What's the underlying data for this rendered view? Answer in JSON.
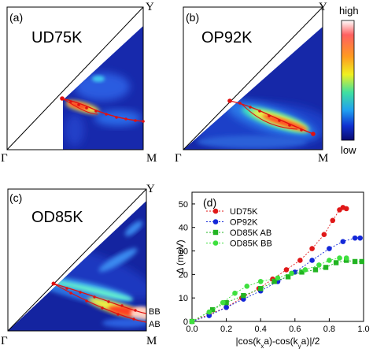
{
  "panels": [
    {
      "tag": "(a)",
      "sample": "UD75K",
      "corner_top": "Y",
      "corner_left": "Γ",
      "corner_right": "M"
    },
    {
      "tag": "(b)",
      "sample": "OP92K",
      "corner_top": "Y",
      "corner_left": "Γ",
      "corner_right": "M"
    },
    {
      "tag": "(c)",
      "sample": "OD85K",
      "corner_top": "Y",
      "corner_left": "Γ",
      "corner_right": "M",
      "band_labels": [
        "BB",
        "AB"
      ]
    }
  ],
  "colorbar": {
    "high_label": "high",
    "low_label": "low"
  },
  "chart_data": {
    "type": "scatter",
    "tag": "(d)",
    "xlabel": "|cos(k",
    "xlabel_parts": [
      "|cos(k",
      "x",
      "a)-cos(k",
      "y",
      "a)|/2"
    ],
    "ylabel": "Δ (meV)",
    "xlim": [
      0,
      1.0
    ],
    "ylim": [
      0,
      55
    ],
    "xticks": [
      "0.0",
      "0.2",
      "0.4",
      "0.6",
      "0.8",
      "1.0"
    ],
    "yticks": [
      "0",
      "10",
      "20",
      "30",
      "40",
      "50"
    ],
    "grid": false,
    "legend_position": "top-left",
    "series": [
      {
        "name": "UD75K",
        "color": "#e01818",
        "marker": "circle",
        "x": [
          0.0,
          0.1,
          0.2,
          0.29,
          0.39,
          0.47,
          0.55,
          0.63,
          0.7,
          0.77,
          0.82,
          0.86,
          0.88,
          0.9
        ],
        "y": [
          0,
          3,
          6,
          10,
          14,
          18,
          22,
          26,
          31,
          37,
          43,
          47.5,
          48.5,
          48
        ]
      },
      {
        "name": "OP92K",
        "color": "#1428d8",
        "marker": "circle",
        "x": [
          0.0,
          0.1,
          0.2,
          0.3,
          0.4,
          0.5,
          0.6,
          0.7,
          0.8,
          0.88,
          0.95,
          0.98
        ],
        "y": [
          0,
          2.5,
          6,
          9.5,
          13,
          17,
          21,
          26,
          31,
          34,
          35.5,
          35.5
        ]
      },
      {
        "name": "OD85K AB",
        "color": "#22b422",
        "marker": "square",
        "x": [
          0.0,
          0.12,
          0.2,
          0.3,
          0.4,
          0.48,
          0.56,
          0.64,
          0.72,
          0.78,
          0.84,
          0.9,
          0.95,
          0.99
        ],
        "y": [
          0,
          5,
          8,
          11,
          14,
          17,
          19,
          21,
          22,
          23,
          25,
          26,
          25.5,
          25.5
        ]
      },
      {
        "name": "OD85K BB",
        "color": "#3ee03e",
        "marker": "circle",
        "x": [
          0.0,
          0.1,
          0.18,
          0.25,
          0.32,
          0.4,
          0.5,
          0.58,
          0.66,
          0.74,
          0.8,
          0.86,
          0.9
        ],
        "y": [
          0,
          4,
          8,
          12,
          15,
          17,
          18.5,
          20.5,
          22,
          24,
          26,
          27,
          27
        ]
      }
    ]
  }
}
